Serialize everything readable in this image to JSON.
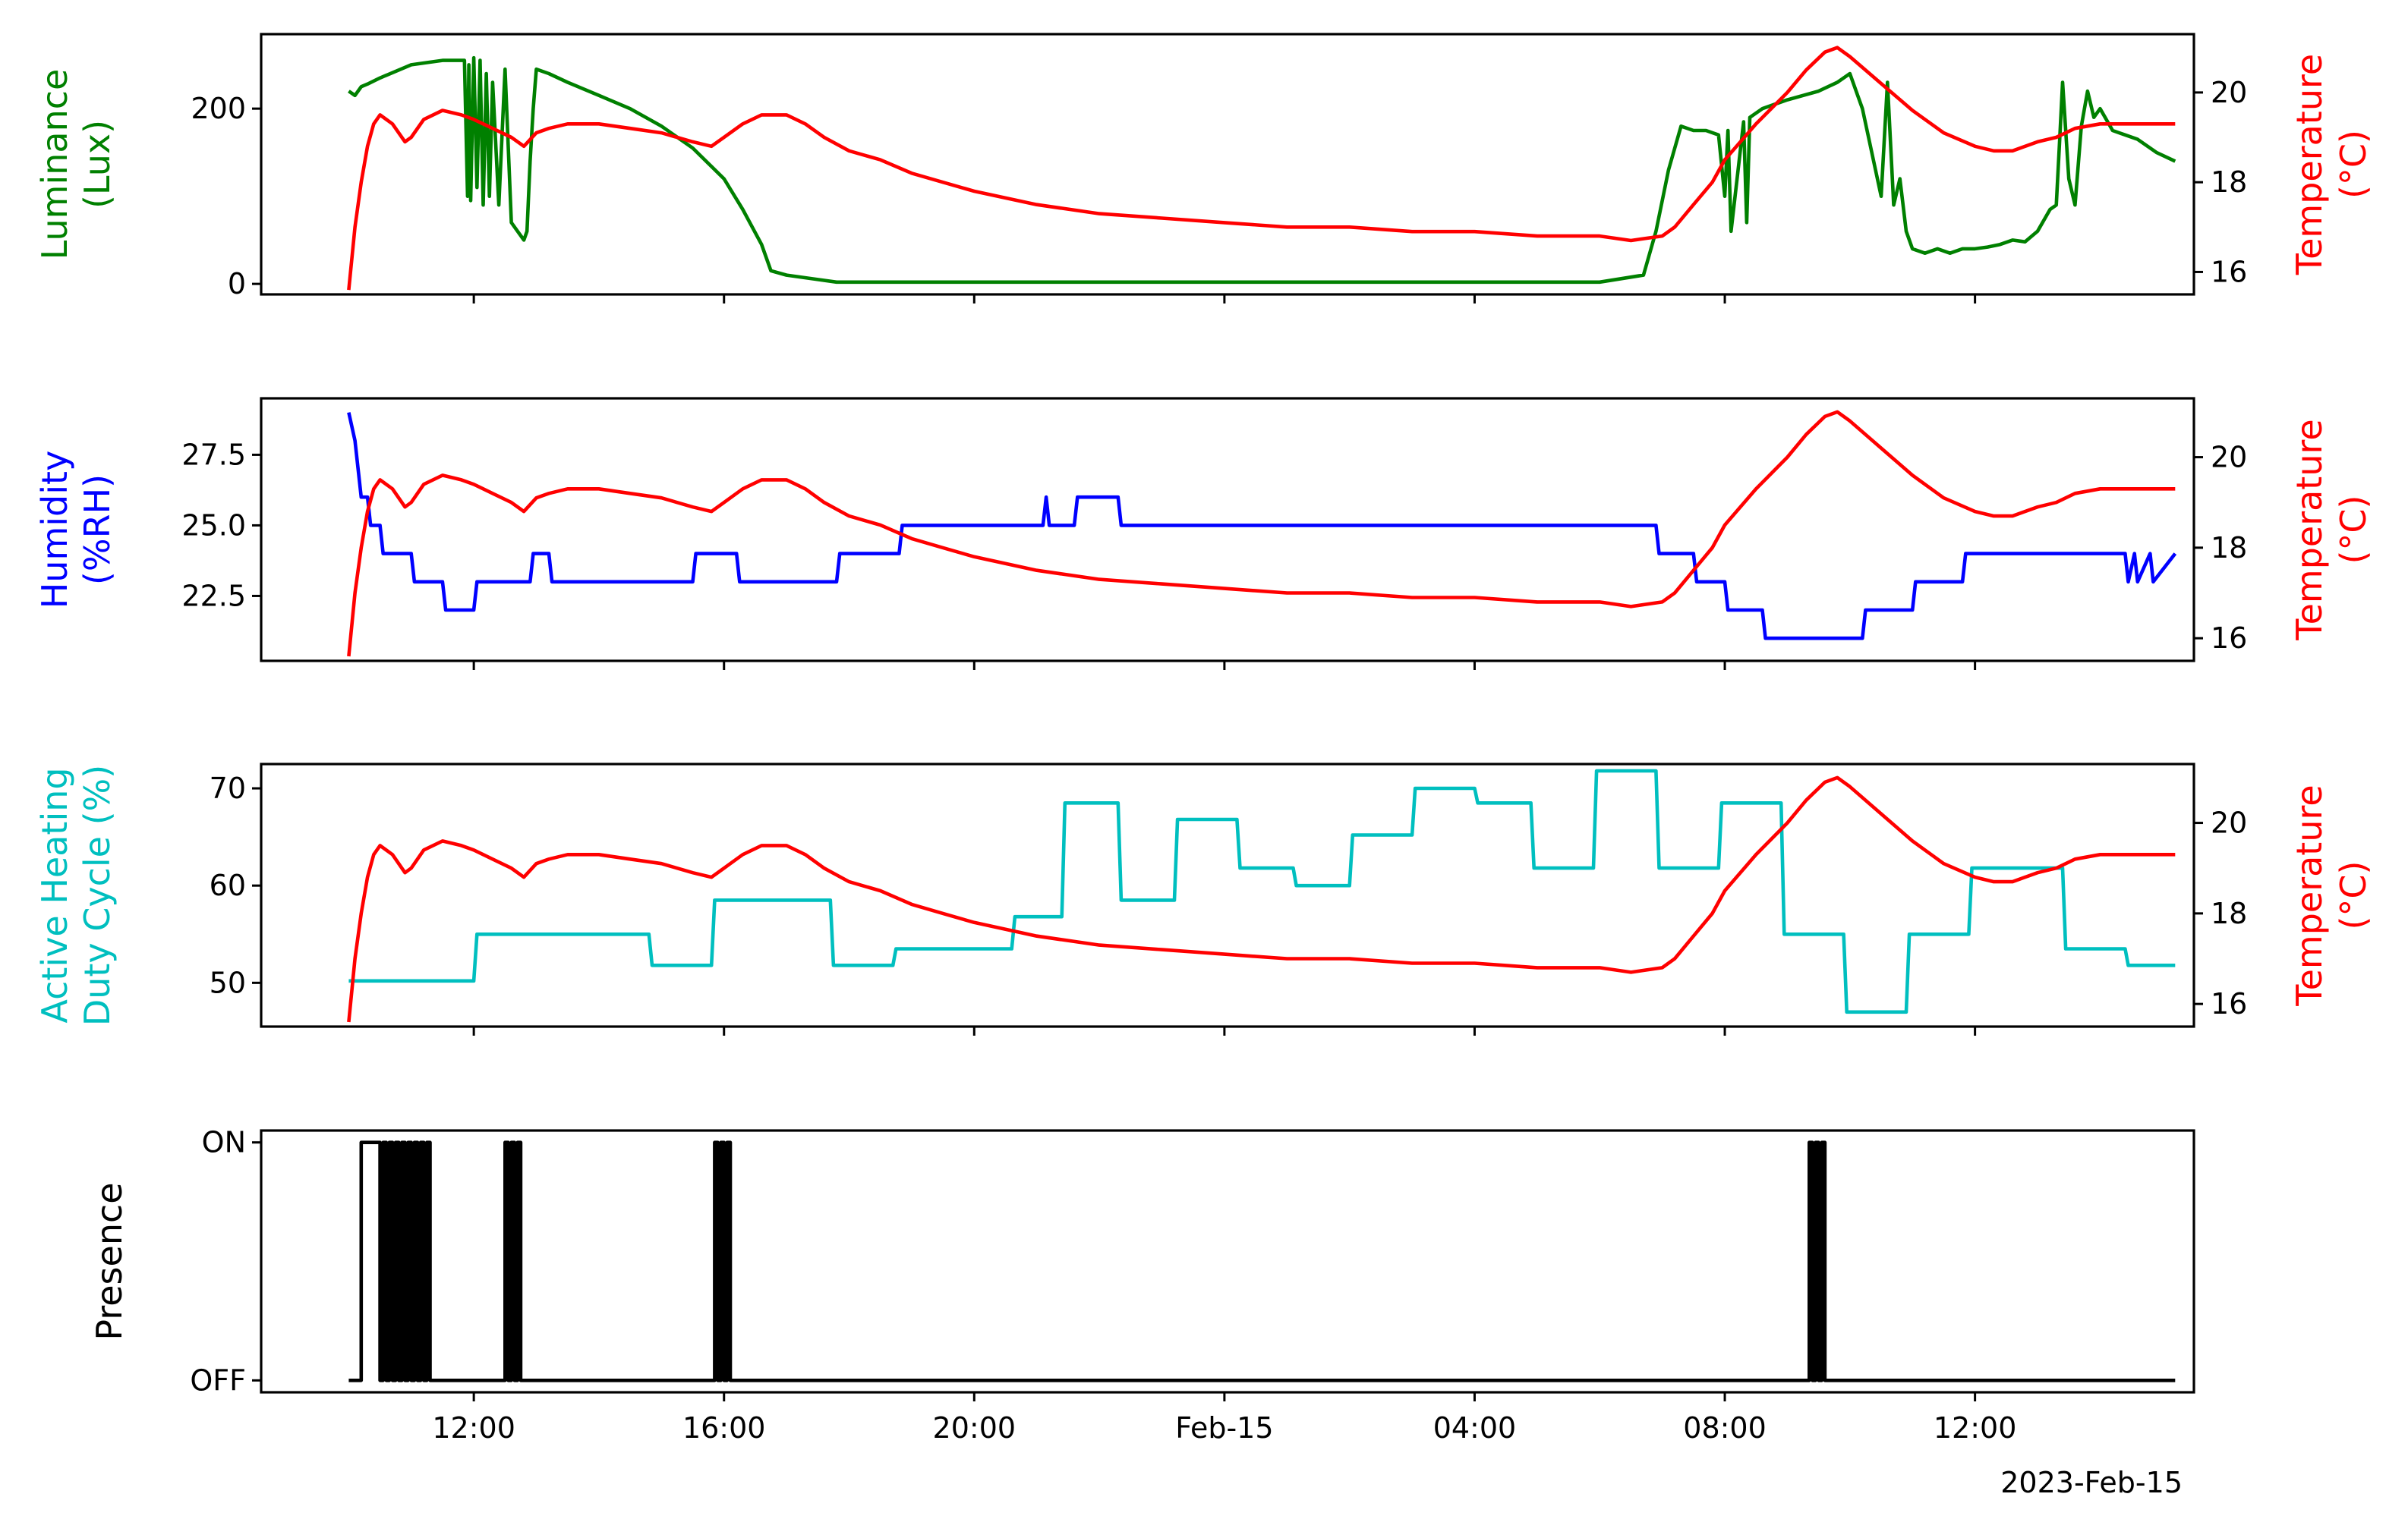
{
  "colors": {
    "luminance": "#008000",
    "temperature": "#ff0000",
    "humidity": "#0000ff",
    "heating": "#00bfbf",
    "presence": "#000000"
  },
  "x_axis": {
    "ticks": [
      {
        "t": 12,
        "label": "12:00"
      },
      {
        "t": 16,
        "label": "16:00"
      },
      {
        "t": 20,
        "label": "20:00"
      },
      {
        "t": 24,
        "label": "Feb-15"
      },
      {
        "t": 28,
        "label": "04:00"
      },
      {
        "t": 32,
        "label": "08:00"
      },
      {
        "t": 36,
        "label": "12:00"
      }
    ],
    "offset_label": "2023-Feb-15",
    "range": [
      8.6,
      39.5
    ]
  },
  "temperature_axis": {
    "label_line1": "Temperature",
    "label_line2": "(°C)",
    "ylim": [
      15.5,
      21.3
    ],
    "ticks": [
      16,
      18,
      20
    ]
  },
  "chart_data": [
    {
      "type": "line",
      "panel": "luminance",
      "ylabel_line1": "Luminance",
      "ylabel_line2": "(Lux)",
      "ylim": [
        -12,
        285
      ],
      "yticks": [
        {
          "v": 0,
          "label": "0"
        },
        {
          "v": 200,
          "label": "200"
        }
      ],
      "series": [
        {
          "x": [
            10,
            10.1,
            10.2,
            10.3,
            10.5,
            11,
            11.5,
            11.85,
            11.9,
            11.92,
            11.95,
            12,
            12.05,
            12.1,
            12.15,
            12.2,
            12.25,
            12.3,
            12.4,
            12.5,
            12.6,
            12.7,
            12.8,
            12.85,
            12.9,
            12.95,
            13,
            13.2,
            13.5,
            14,
            14.5,
            15,
            15.5,
            16,
            16.3,
            16.6,
            16.75,
            17,
            17.5,
            17.8,
            18,
            20,
            24,
            28,
            30,
            30.7,
            30.9,
            31.1,
            31.3,
            31.5,
            31.7,
            31.9,
            32,
            32.05,
            32.1,
            32.3,
            32.35,
            32.4,
            32.6,
            33,
            33.5,
            33.8,
            34,
            34.2,
            34.5,
            34.6,
            34.7,
            34.8,
            34.9,
            35,
            35.2,
            35.4,
            35.6,
            35.8,
            36,
            36.2,
            36.4,
            36.6,
            36.8,
            37,
            37.2,
            37.3,
            37.35,
            37.4,
            37.5,
            37.6,
            37.7,
            37.8,
            37.9,
            38,
            38.2,
            38.4,
            38.6,
            38.9,
            39.2
          ],
          "values": [
            220,
            215,
            225,
            228,
            235,
            250,
            255,
            255,
            100,
            250,
            95,
            258,
            110,
            255,
            90,
            240,
            100,
            230,
            90,
            245,
            70,
            60,
            50,
            60,
            140,
            200,
            245,
            240,
            230,
            215,
            200,
            180,
            155,
            120,
            85,
            45,
            15,
            10,
            5,
            2,
            2,
            2,
            2,
            2,
            2,
            10,
            60,
            130,
            180,
            175,
            175,
            170,
            100,
            175,
            60,
            185,
            70,
            190,
            200,
            210,
            220,
            230,
            240,
            200,
            100,
            230,
            90,
            120,
            60,
            40,
            35,
            40,
            35,
            40,
            40,
            42,
            45,
            50,
            48,
            60,
            85,
            90,
            160,
            230,
            120,
            90,
            180,
            220,
            190,
            200,
            175,
            170,
            165,
            150,
            140
          ]
        }
      ]
    },
    {
      "type": "line",
      "panel": "humidity",
      "ylabel_line1": "Humidity",
      "ylabel_line2": "(%RH)",
      "ylim": [
        20.2,
        29.5
      ],
      "yticks": [
        {
          "v": 22.5,
          "label": "22.5"
        },
        {
          "v": 25,
          "label": "25.0"
        },
        {
          "v": 27.5,
          "label": "27.5"
        }
      ],
      "series": [
        {
          "x": [
            10,
            10.1,
            10.15,
            10.2,
            10.3,
            10.35,
            10.5,
            10.55,
            10.75,
            11,
            11.05,
            11.5,
            11.55,
            12,
            12.05,
            12.9,
            12.95,
            13.2,
            13.25,
            15.5,
            15.55,
            16.2,
            16.25,
            17.8,
            17.85,
            18.8,
            18.85,
            21.1,
            21.15,
            21.2,
            21.6,
            21.65,
            22.3,
            22.35,
            23.2,
            23.25,
            30.9,
            30.95,
            31.5,
            31.55,
            32,
            32.05,
            32.6,
            32.65,
            34.2,
            34.25,
            35,
            35.05,
            35.8,
            35.85,
            38.4,
            38.45,
            38.55,
            38.6,
            38.8,
            38.85,
            39.2
          ],
          "values": [
            29,
            28,
            27,
            26,
            26,
            25,
            25,
            24,
            24,
            24,
            23,
            23,
            22,
            22,
            23,
            23,
            24,
            24,
            23,
            23,
            24,
            24,
            23,
            23,
            24,
            24,
            25,
            25,
            26,
            25,
            25,
            26,
            26,
            25,
            25,
            25,
            25,
            24,
            24,
            23,
            23,
            22,
            22,
            21,
            21,
            22,
            22,
            23,
            23,
            24,
            24,
            23,
            24,
            23,
            24,
            23,
            24
          ]
        }
      ]
    },
    {
      "type": "line",
      "panel": "heating",
      "ylabel_line1": "Active Heating",
      "ylabel_line2": "Duty Cycle (%)",
      "ylim": [
        45.5,
        72.5
      ],
      "yticks": [
        {
          "v": 50,
          "label": "50"
        },
        {
          "v": 60,
          "label": "60"
        },
        {
          "v": 70,
          "label": "70"
        }
      ],
      "series": [
        {
          "x": [
            10,
            12,
            12.05,
            14.8,
            14.85,
            15.8,
            15.85,
            17.7,
            17.75,
            18.7,
            18.75,
            20.6,
            20.65,
            21.4,
            21.45,
            22.3,
            22.35,
            23.2,
            23.25,
            24.2,
            24.25,
            25.1,
            25.15,
            26,
            26.05,
            27,
            27.05,
            28,
            28.05,
            28.9,
            28.95,
            29.9,
            29.95,
            30.9,
            30.95,
            31.9,
            31.95,
            32.9,
            32.95,
            33.9,
            33.95,
            34.9,
            34.95,
            35.9,
            35.95,
            36.4,
            36.45,
            37.4,
            37.45,
            38.4,
            38.45,
            39.2
          ],
          "values": [
            50.2,
            50.2,
            55,
            55,
            51.8,
            51.8,
            58.5,
            58.5,
            51.8,
            51.8,
            53.5,
            53.5,
            56.8,
            56.8,
            68.5,
            68.5,
            58.5,
            58.5,
            66.8,
            66.8,
            61.8,
            61.8,
            60,
            60,
            65.2,
            65.2,
            70,
            70,
            68.5,
            68.5,
            61.8,
            61.8,
            71.8,
            71.8,
            61.8,
            61.8,
            68.5,
            68.5,
            55,
            55,
            47,
            47,
            55,
            55,
            61.8,
            61.8,
            61.8,
            61.8,
            53.5,
            53.5,
            51.8,
            51.8
          ]
        }
      ]
    },
    {
      "type": "line",
      "panel": "presence",
      "ylabel_line1": "Presence",
      "ylabel_line2": "",
      "ylim": [
        -0.05,
        1.05
      ],
      "yticks": [
        {
          "v": 0,
          "label": "OFF"
        },
        {
          "v": 1,
          "label": "ON"
        }
      ],
      "series": [
        {
          "state_on_intervals": [
            [
              10.2,
              10.5
            ],
            [
              10.55,
              10.6
            ],
            [
              10.65,
              10.7
            ],
            [
              10.75,
              10.8
            ],
            [
              10.85,
              10.9
            ],
            [
              10.95,
              11.0
            ],
            [
              11.05,
              11.1
            ],
            [
              11.15,
              11.2
            ],
            [
              11.25,
              11.3
            ],
            [
              12.5,
              12.55
            ],
            [
              12.6,
              12.65
            ],
            [
              12.7,
              12.75
            ],
            [
              15.85,
              15.9
            ],
            [
              15.95,
              16.0
            ],
            [
              16.05,
              16.1
            ],
            [
              33.35,
              33.4
            ],
            [
              33.45,
              33.5
            ],
            [
              33.55,
              33.6
            ]
          ],
          "x_range": [
            10,
            39.2
          ]
        }
      ]
    },
    {
      "type": "line",
      "panel": "temperature-overlay",
      "note": "shared temperature series drawn on the right axis of the first three panels",
      "series": [
        {
          "x": [
            10,
            10.1,
            10.2,
            10.3,
            10.4,
            10.5,
            10.7,
            10.9,
            11,
            11.2,
            11.5,
            11.8,
            12,
            12.3,
            12.6,
            12.8,
            13,
            13.2,
            13.5,
            14,
            14.5,
            15,
            15.5,
            15.8,
            16,
            16.3,
            16.6,
            17,
            17.3,
            17.6,
            18,
            18.5,
            19,
            19.5,
            20,
            21,
            22,
            23,
            24,
            25,
            26,
            27,
            28,
            29,
            30,
            30.5,
            31,
            31.2,
            31.5,
            31.8,
            32,
            32.5,
            33,
            33.3,
            33.6,
            33.8,
            34,
            34.5,
            35,
            35.5,
            36,
            36.3,
            36.6,
            37,
            37.3,
            37.6,
            38,
            38.3,
            38.6,
            39,
            39.2
          ],
          "values": [
            15.6,
            17,
            18,
            18.8,
            19.3,
            19.5,
            19.3,
            18.9,
            19,
            19.4,
            19.6,
            19.5,
            19.4,
            19.2,
            19,
            18.8,
            19.1,
            19.2,
            19.3,
            19.3,
            19.2,
            19.1,
            18.9,
            18.8,
            19,
            19.3,
            19.5,
            19.5,
            19.3,
            19,
            18.7,
            18.5,
            18.2,
            18,
            17.8,
            17.5,
            17.3,
            17.2,
            17.1,
            17,
            17,
            16.9,
            16.9,
            16.8,
            16.8,
            16.7,
            16.8,
            17,
            17.5,
            18,
            18.5,
            19.3,
            20,
            20.5,
            20.9,
            21,
            20.8,
            20.2,
            19.6,
            19.1,
            18.8,
            18.7,
            18.7,
            18.9,
            19,
            19.2,
            19.3,
            19.3,
            19.3,
            19.3,
            19.3
          ]
        }
      ]
    }
  ]
}
